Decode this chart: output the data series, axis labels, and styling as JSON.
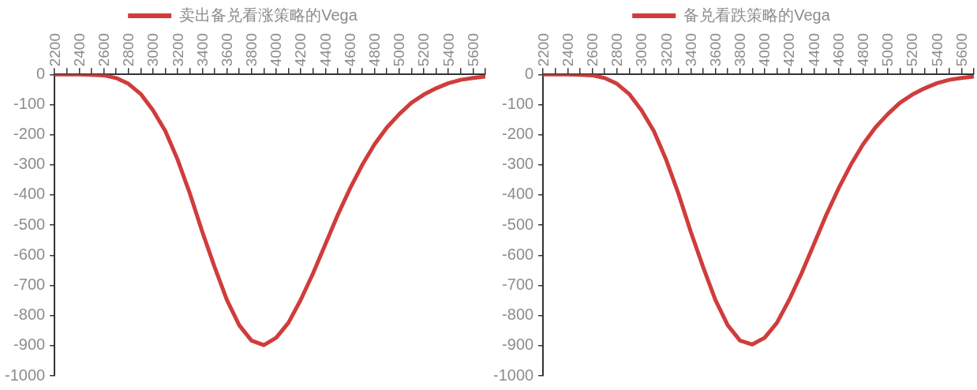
{
  "chart_data": [
    {
      "type": "line",
      "legend": "top",
      "grid": false,
      "marker": "none",
      "line_style": "solid",
      "x": [
        2200,
        2300,
        2400,
        2500,
        2600,
        2700,
        2800,
        2900,
        3000,
        3100,
        3200,
        3300,
        3400,
        3500,
        3600,
        3700,
        3800,
        3900,
        4000,
        4100,
        4200,
        4300,
        4400,
        4500,
        4600,
        4700,
        4800,
        4900,
        5000,
        5100,
        5200,
        5300,
        5400,
        5500,
        5600,
        5700
      ],
      "xlim": [
        2200,
        5700
      ],
      "xticks": [
        2200,
        {
          "value": 2300,
          "label": null
        },
        2400,
        {
          "value": 2500,
          "label": null
        },
        2600,
        {
          "value": 2700,
          "label": null
        },
        2800,
        {
          "value": 2900,
          "label": null
        },
        3000,
        {
          "value": 3100,
          "label": null
        },
        3200,
        {
          "value": 3300,
          "label": null
        },
        3400,
        {
          "value": 3500,
          "label": null
        },
        3600,
        {
          "value": 3700,
          "label": null
        },
        3800,
        {
          "value": 3900,
          "label": null
        },
        4000,
        {
          "value": 4100,
          "label": null
        },
        4200,
        {
          "value": 4300,
          "label": null
        },
        4400,
        {
          "value": 4500,
          "label": null
        },
        4600,
        {
          "value": 4700,
          "label": null
        },
        4800,
        {
          "value": 4900,
          "label": null
        },
        5000,
        {
          "value": 5100,
          "label": null
        },
        5200,
        {
          "value": 5300,
          "label": null
        },
        5400,
        {
          "value": 5500,
          "label": null
        },
        5600,
        {
          "value": 5700,
          "label": null
        }
      ],
      "ylim": [
        -1000,
        0
      ],
      "yticks": [
        -1000,
        -900,
        -800,
        -700,
        -600,
        -500,
        -400,
        -300,
        -200,
        -100,
        0
      ],
      "series": [
        {
          "name": "卖出备兑看涨策略的Vega",
          "color": "#d03c3c",
          "values": [
            0,
            0,
            0,
            -1,
            -3,
            -12,
            -31,
            -65,
            -119,
            -188,
            -283,
            -396,
            -522,
            -639,
            -748,
            -832,
            -883,
            -898,
            -874,
            -824,
            -748,
            -660,
            -564,
            -467,
            -379,
            -300,
            -232,
            -176,
            -132,
            -94,
            -67,
            -46,
            -29,
            -18,
            -12,
            -7
          ]
        }
      ]
    },
    {
      "type": "line",
      "legend": "top",
      "grid": false,
      "marker": "none",
      "line_style": "solid",
      "x": [
        2200,
        2300,
        2400,
        2500,
        2600,
        2700,
        2800,
        2900,
        3000,
        3100,
        3200,
        3300,
        3400,
        3500,
        3600,
        3700,
        3800,
        3900,
        4000,
        4100,
        4200,
        4300,
        4400,
        4500,
        4600,
        4700,
        4800,
        4900,
        5000,
        5100,
        5200,
        5300,
        5400,
        5500,
        5600,
        5700
      ],
      "xlim": [
        2200,
        5700
      ],
      "xticks": [
        2200,
        {
          "value": 2300,
          "label": null
        },
        2400,
        {
          "value": 2500,
          "label": null
        },
        2600,
        {
          "value": 2700,
          "label": null
        },
        2800,
        {
          "value": 2900,
          "label": null
        },
        3000,
        {
          "value": 3100,
          "label": null
        },
        3200,
        {
          "value": 3300,
          "label": null
        },
        3400,
        {
          "value": 3500,
          "label": null
        },
        3600,
        {
          "value": 3700,
          "label": null
        },
        3800,
        {
          "value": 3900,
          "label": null
        },
        4000,
        {
          "value": 4100,
          "label": null
        },
        4200,
        {
          "value": 4300,
          "label": null
        },
        4400,
        {
          "value": 4500,
          "label": null
        },
        4600,
        {
          "value": 4700,
          "label": null
        },
        4800,
        {
          "value": 4900,
          "label": null
        },
        5000,
        {
          "value": 5100,
          "label": null
        },
        5200,
        {
          "value": 5300,
          "label": null
        },
        5400,
        {
          "value": 5500,
          "label": null
        },
        5600,
        {
          "value": 5700,
          "label": null
        }
      ],
      "ylim": [
        -1000,
        0
      ],
      "yticks": [
        -1000,
        -900,
        -800,
        -700,
        -600,
        -500,
        -400,
        -300,
        -200,
        -100,
        0
      ],
      "series": [
        {
          "name": "备兑看跌策略的Vega",
          "color": "#d03c3c",
          "values": [
            0,
            0,
            0,
            -1,
            -3,
            -12,
            -31,
            -65,
            -119,
            -188,
            -283,
            -396,
            -522,
            -639,
            -748,
            -832,
            -883,
            -896,
            -874,
            -824,
            -748,
            -660,
            -564,
            -467,
            -379,
            -300,
            -232,
            -176,
            -132,
            -94,
            -67,
            -46,
            -29,
            -18,
            -12,
            -7
          ]
        }
      ]
    }
  ]
}
